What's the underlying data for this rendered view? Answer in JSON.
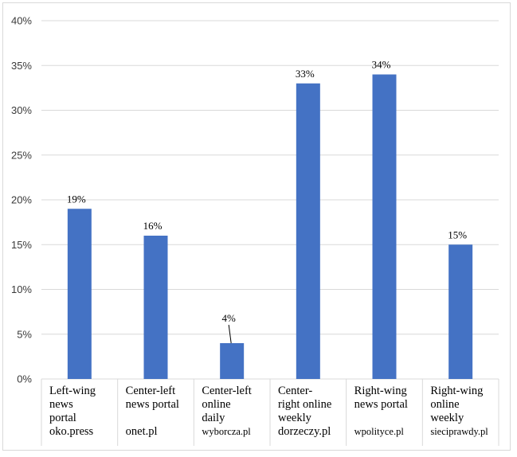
{
  "chart_data": {
    "type": "bar",
    "categories": [
      {
        "lines": [
          "Left-wing",
          "news",
          "portal",
          "oko.press"
        ],
        "site_small": false
      },
      {
        "lines": [
          "Center-left",
          "news portal",
          "",
          "onet.pl"
        ],
        "site_small": false
      },
      {
        "lines": [
          "Center-left",
          "online",
          "daily",
          "wyborcza.pl"
        ],
        "site_small": true
      },
      {
        "lines": [
          "Center-",
          "right online",
          "weekly",
          "dorzeczy.pl"
        ],
        "site_small": false
      },
      {
        "lines": [
          "Right-wing",
          "news portal",
          "",
          "wpolityce.pl"
        ],
        "site_small": true
      },
      {
        "lines": [
          "Right-wing",
          "online",
          "weekly",
          "sieciprawdy.pl"
        ],
        "site_small": true
      }
    ],
    "values": [
      19,
      16,
      4,
      33,
      34,
      15
    ],
    "data_labels": [
      "19%",
      "16%",
      "4%",
      "33%",
      "34%",
      "15%"
    ],
    "yticks": [
      "0%",
      "5%",
      "10%",
      "15%",
      "20%",
      "25%",
      "30%",
      "35%",
      "40%"
    ],
    "ylim": [
      0,
      40
    ],
    "grid": true,
    "bar_color": "#4472c4",
    "gridline_color": "#d9d9d9"
  }
}
